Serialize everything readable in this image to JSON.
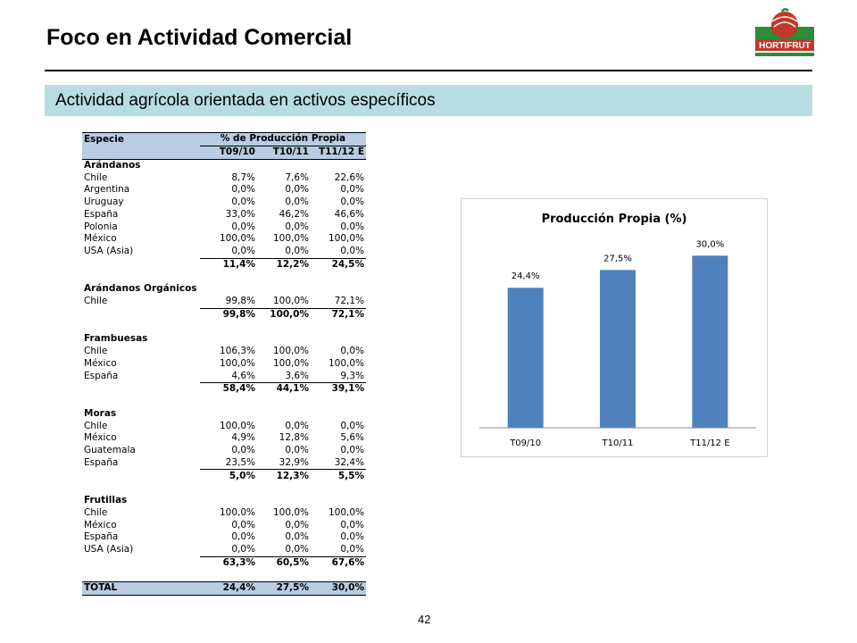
{
  "header": {
    "title": "Foco en Actividad Comercial",
    "subtitle": "Actividad agrícola orientada en activos específicos",
    "logo_text": "HORTIFRUT"
  },
  "table": {
    "col_especie": "Especie",
    "col_group": "% de Producción Propia",
    "periods": [
      "T09/10",
      "T10/11",
      "T11/12 E"
    ],
    "sections": [
      {
        "name": "Arándanos",
        "rows": [
          {
            "label": "Chile",
            "v": [
              "8,7%",
              "7,6%",
              "22,6%"
            ]
          },
          {
            "label": "Argentina",
            "v": [
              "0,0%",
              "0,0%",
              "0,0%"
            ]
          },
          {
            "label": "Uruguay",
            "v": [
              "0,0%",
              "0,0%",
              "0,0%"
            ]
          },
          {
            "label": "España",
            "v": [
              "33,0%",
              "46,2%",
              "46,6%"
            ]
          },
          {
            "label": "Polonia",
            "v": [
              "0,0%",
              "0,0%",
              "0,0%"
            ]
          },
          {
            "label": "México",
            "v": [
              "100,0%",
              "100,0%",
              "100,0%"
            ]
          },
          {
            "label": "USA (Asia)",
            "v": [
              "0,0%",
              "0,0%",
              "0,0%"
            ]
          }
        ],
        "subtotal": [
          "11,4%",
          "12,2%",
          "24,5%"
        ]
      },
      {
        "name": "Arándanos Orgánicos",
        "rows": [
          {
            "label": "Chile",
            "v": [
              "99,8%",
              "100,0%",
              "72,1%"
            ]
          }
        ],
        "subtotal": [
          "99,8%",
          "100,0%",
          "72,1%"
        ]
      },
      {
        "name": "Frambuesas",
        "rows": [
          {
            "label": "Chile",
            "v": [
              "106,3%",
              "100,0%",
              "0,0%"
            ]
          },
          {
            "label": "México",
            "v": [
              "100,0%",
              "100,0%",
              "100,0%"
            ]
          },
          {
            "label": "España",
            "v": [
              "4,6%",
              "3,6%",
              "9,3%"
            ]
          }
        ],
        "subtotal": [
          "58,4%",
          "44,1%",
          "39,1%"
        ]
      },
      {
        "name": "Moras",
        "rows": [
          {
            "label": "Chile",
            "v": [
              "100,0%",
              "0,0%",
              "0,0%"
            ]
          },
          {
            "label": "México",
            "v": [
              "4,9%",
              "12,8%",
              "5,6%"
            ]
          },
          {
            "label": "Guatemala",
            "v": [
              "0,0%",
              "0,0%",
              "0,0%"
            ]
          },
          {
            "label": "España",
            "v": [
              "23,5%",
              "32,9%",
              "32,4%"
            ]
          }
        ],
        "subtotal": [
          "5,0%",
          "12,3%",
          "5,5%"
        ]
      },
      {
        "name": "Frutillas",
        "rows": [
          {
            "label": "Chile",
            "v": [
              "100,0%",
              "100,0%",
              "100,0%"
            ]
          },
          {
            "label": "México",
            "v": [
              "0,0%",
              "0,0%",
              "0,0%"
            ]
          },
          {
            "label": "España",
            "v": [
              "0,0%",
              "0,0%",
              "0,0%"
            ]
          },
          {
            "label": "USA (Asia)",
            "v": [
              "0,0%",
              "0,0%",
              "0,0%"
            ]
          }
        ],
        "subtotal": [
          "63,3%",
          "60,5%",
          "67,6%"
        ]
      }
    ],
    "total_label": "TOTAL",
    "total": [
      "24,4%",
      "27,5%",
      "30,0%"
    ]
  },
  "chart_data": {
    "type": "bar",
    "title": "Producción Propia (%)",
    "categories": [
      "T09/10",
      "T10/11",
      "T11/12 E"
    ],
    "values": [
      24.4,
      27.5,
      30.0
    ],
    "data_labels": [
      "24,4%",
      "27,5%",
      "30,0%"
    ],
    "ylim": [
      0,
      33
    ],
    "grid": false,
    "bar_color": "#4f81bd"
  },
  "footer": {
    "page_number": "42"
  },
  "colors": {
    "banner": "#b7dde3",
    "table_header": "#b8cce4",
    "bar": "#4f81bd",
    "logo_red": "#c0392b",
    "logo_green": "#2e8b3a"
  }
}
